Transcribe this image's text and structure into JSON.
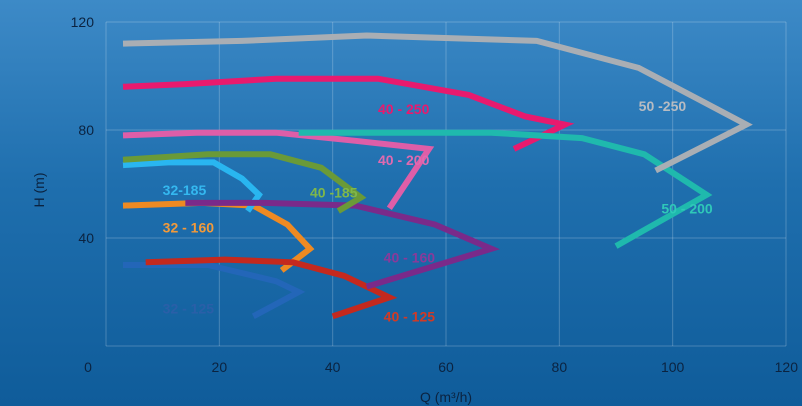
{
  "chart_data": {
    "type": "line",
    "title": "",
    "xlabel": "Q (m³/h)",
    "ylabel": "H (m)",
    "xlim": [
      0,
      120
    ],
    "ylim": [
      0,
      120
    ],
    "x_ticks": [
      "0",
      "20",
      "40",
      "60",
      "80",
      "100",
      "120"
    ],
    "y_ticks": [
      "40",
      "80",
      "120"
    ],
    "grid": true,
    "series": [
      {
        "name": "32 - 125",
        "color": "#2366b8",
        "label_at": [
          10,
          12
        ],
        "label_color": "#2a5fa8",
        "x": [
          3,
          18,
          30,
          34,
          26
        ],
        "y": [
          30,
          30,
          24,
          20,
          11
        ]
      },
      {
        "name": "32 - 160",
        "color": "#ee8a22",
        "label_at": [
          10,
          42
        ],
        "label_color": "#f29a3a",
        "x": [
          3,
          17,
          26,
          32,
          36,
          31
        ],
        "y": [
          52,
          53,
          52,
          45,
          36,
          28
        ]
      },
      {
        "name": "32-185",
        "color": "#29b6f0",
        "label_at": [
          10,
          56
        ],
        "label_color": "#34b8f0",
        "x": [
          3,
          11,
          19,
          24,
          27,
          25
        ],
        "y": [
          67,
          68,
          68,
          62,
          56,
          50
        ]
      },
      {
        "name": "40 - 125",
        "color": "#c4291e",
        "label_at": [
          49,
          9
        ],
        "label_color": "#d33a24",
        "x": [
          7,
          21,
          33,
          42,
          50,
          40
        ],
        "y": [
          31,
          32,
          31,
          26,
          18,
          11
        ]
      },
      {
        "name": "40 - 160",
        "color": "#7a2a8a",
        "label_at": [
          49,
          31
        ],
        "label_color": "#8a3a9a",
        "x": [
          14,
          28,
          44,
          58,
          68,
          46
        ],
        "y": [
          53,
          53,
          52,
          45,
          36,
          22
        ]
      },
      {
        "name": "40 -185",
        "color": "#6a9a38",
        "label_at": [
          36,
          55
        ],
        "label_color": "#7fb84a",
        "x": [
          3,
          18,
          29,
          38,
          45,
          41
        ],
        "y": [
          69,
          71,
          71,
          66,
          55,
          50
        ]
      },
      {
        "name": "40 - 200",
        "color": "#de5ea8",
        "label_at": [
          48,
          67
        ],
        "label_color": "#e06ab0",
        "x": [
          3,
          16,
          30,
          44,
          57,
          50
        ],
        "y": [
          78,
          79,
          79,
          76,
          73,
          51
        ]
      },
      {
        "name": "40 - 250",
        "color": "#e81a6e",
        "label_at": [
          48,
          86
        ],
        "label_color": "#e81a6e",
        "x": [
          3,
          14,
          30,
          48,
          64,
          74,
          81,
          72
        ],
        "y": [
          96,
          97,
          99,
          99,
          93,
          85,
          82,
          73
        ]
      },
      {
        "name": "50 - 200",
        "color": "#1fb9ad",
        "label_at": [
          98,
          49
        ],
        "label_color": "#2fc8b8",
        "x": [
          34,
          50,
          68,
          84,
          95,
          106,
          90
        ],
        "y": [
          79,
          79,
          79,
          77,
          71,
          56,
          37
        ]
      },
      {
        "name": "50 -250",
        "color": "#a9aeb4",
        "label_at": [
          94,
          87
        ],
        "label_color": "#b8bcc2",
        "x": [
          3,
          24,
          46,
          76,
          94,
          104,
          113,
          97
        ],
        "y": [
          112,
          113,
          115,
          113,
          103,
          92,
          82,
          65
        ]
      }
    ]
  }
}
